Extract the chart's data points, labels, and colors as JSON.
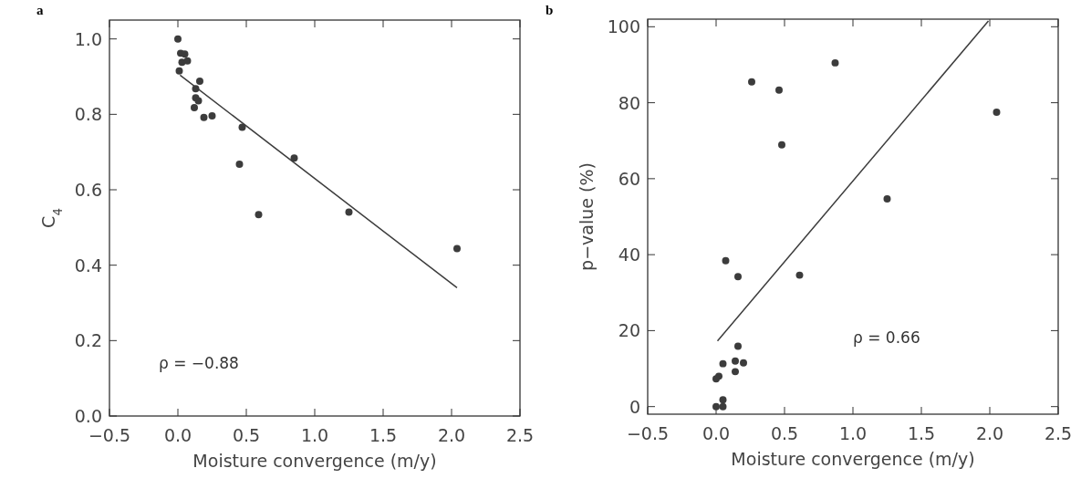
{
  "chart_data": [
    {
      "type": "scatter",
      "title": "a",
      "xlabel": "Moisture convergence (m/y)",
      "ylabel": "C$_{4}$",
      "xlim": [
        -0.5,
        2.5
      ],
      "ylim": [
        0,
        1.05
      ],
      "xticks": [
        {
          "value": -0.5,
          "label": "−0.5"
        },
        {
          "value": 0,
          "label": "0.0"
        },
        {
          "value": 0.5,
          "label": "0.5"
        },
        {
          "value": 1,
          "label": "1.0"
        },
        {
          "value": 1.5,
          "label": "1.5"
        },
        {
          "value": 2,
          "label": "2.0"
        },
        {
          "value": 2.5,
          "label": "2.5"
        }
      ],
      "yticks": [
        {
          "value": 0,
          "label": "0.0"
        },
        {
          "value": 0.2,
          "label": "0.2"
        },
        {
          "value": 0.4,
          "label": "0.4"
        },
        {
          "value": 0.6,
          "label": "0.6"
        },
        {
          "value": 0.8,
          "label": "0.8"
        },
        {
          "value": 1,
          "label": "1.0"
        }
      ],
      "grid": false,
      "annotations": [
        "ρ = −0.88"
      ],
      "series": [
        {
          "marker": "circle",
          "color": "#3c3c3c",
          "x": [
            0,
            0.02,
            0.05,
            0.03,
            0.07,
            0.01,
            0.16,
            0.13,
            0.13,
            0.15,
            0.12,
            0.19,
            0.25,
            0.47,
            0.45,
            0.85,
            0.59,
            1.25,
            2.04
          ],
          "values": [
            1.0,
            0.962,
            0.96,
            0.938,
            0.942,
            0.915,
            0.888,
            0.868,
            0.844,
            0.836,
            0.818,
            0.792,
            0.796,
            0.766,
            0.668,
            0.684,
            0.534,
            0.541,
            0.444
          ]
        },
        {
          "type": "line",
          "color": "#3c3c3c",
          "x": [
            0.016,
            2.04
          ],
          "values": [
            0.904,
            0.34
          ]
        }
      ]
    },
    {
      "type": "scatter",
      "title": "b",
      "xlabel": "Moisture convergence (m/y)",
      "ylabel": "p−value (%)",
      "xlim": [
        -0.5,
        2.5
      ],
      "ylim": [
        -2,
        102
      ],
      "xticks": [
        {
          "value": -0.5,
          "label": "−0.5"
        },
        {
          "value": 0,
          "label": "0.0"
        },
        {
          "value": 0.5,
          "label": "0.5"
        },
        {
          "value": 1,
          "label": "1.0"
        },
        {
          "value": 1.5,
          "label": "1.5"
        },
        {
          "value": 2,
          "label": "2.0"
        },
        {
          "value": 2.5,
          "label": "2.5"
        }
      ],
      "yticks": [
        0,
        20,
        40,
        60,
        80,
        100
      ],
      "grid": false,
      "annotations": [
        "ρ = 0.66"
      ],
      "series": [
        {
          "marker": "circle",
          "color": "#3c3c3c",
          "x": [
            0.26,
            0.46,
            0.87,
            0.48,
            2.05,
            1.25,
            0.07,
            0.16,
            0.61,
            0.16,
            0.05,
            0.14,
            0.2,
            0.14,
            0.02,
            0.0,
            0.05,
            0.0,
            0.05
          ],
          "values": [
            85.5,
            83.3,
            90.5,
            68.9,
            77.5,
            54.7,
            38.4,
            34.2,
            34.6,
            15.9,
            11.3,
            12.0,
            11.5,
            9.2,
            8.0,
            7.3,
            1.8,
            0,
            0
          ]
        },
        {
          "type": "line",
          "color": "#3c3c3c",
          "x": [
            0.01,
            1.99
          ],
          "values": [
            17.3,
            101.5
          ]
        }
      ]
    }
  ]
}
